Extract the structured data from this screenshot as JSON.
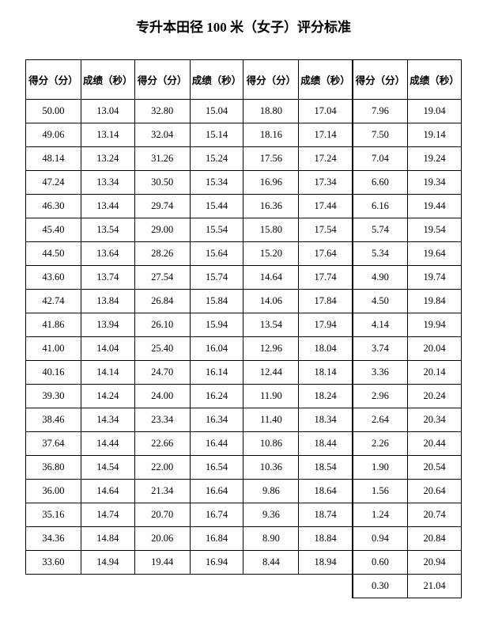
{
  "title": "专升本田径 100 米（女子）评分标准",
  "table": {
    "headers": {
      "score": "得分（分）",
      "time": "成绩（秒）"
    },
    "column_groups": 4,
    "rows": [
      [
        [
          "50.00",
          "13.04"
        ],
        [
          "32.80",
          "15.04"
        ],
        [
          "18.80",
          "17.04"
        ],
        [
          "7.96",
          "19.04"
        ]
      ],
      [
        [
          "49.06",
          "13.14"
        ],
        [
          "32.04",
          "15.14"
        ],
        [
          "18.16",
          "17.14"
        ],
        [
          "7.50",
          "19.14"
        ]
      ],
      [
        [
          "48.14",
          "13.24"
        ],
        [
          "31.26",
          "15.24"
        ],
        [
          "17.56",
          "17.24"
        ],
        [
          "7.04",
          "19.24"
        ]
      ],
      [
        [
          "47.24",
          "13.34"
        ],
        [
          "30.50",
          "15.34"
        ],
        [
          "16.96",
          "17.34"
        ],
        [
          "6.60",
          "19.34"
        ]
      ],
      [
        [
          "46.30",
          "13.44"
        ],
        [
          "29.74",
          "15.44"
        ],
        [
          "16.36",
          "17.44"
        ],
        [
          "6.16",
          "19.44"
        ]
      ],
      [
        [
          "45.40",
          "13.54"
        ],
        [
          "29.00",
          "15.54"
        ],
        [
          "15.80",
          "17.54"
        ],
        [
          "5.74",
          "19.54"
        ]
      ],
      [
        [
          "44.50",
          "13.64"
        ],
        [
          "28.26",
          "15.64"
        ],
        [
          "15.20",
          "17.64"
        ],
        [
          "5.34",
          "19.64"
        ]
      ],
      [
        [
          "43.60",
          "13.74"
        ],
        [
          "27.54",
          "15.74"
        ],
        [
          "14.64",
          "17.74"
        ],
        [
          "4.90",
          "19.74"
        ]
      ],
      [
        [
          "42.74",
          "13.84"
        ],
        [
          "26.84",
          "15.84"
        ],
        [
          "14.06",
          "17.84"
        ],
        [
          "4.50",
          "19.84"
        ]
      ],
      [
        [
          "41.86",
          "13.94"
        ],
        [
          "26.10",
          "15.94"
        ],
        [
          "13.54",
          "17.94"
        ],
        [
          "4.14",
          "19.94"
        ]
      ],
      [
        [
          "41.00",
          "14.04"
        ],
        [
          "25.40",
          "16.04"
        ],
        [
          "12.96",
          "18.04"
        ],
        [
          "3.74",
          "20.04"
        ]
      ],
      [
        [
          "40.16",
          "14.14"
        ],
        [
          "24.70",
          "16.14"
        ],
        [
          "12.44",
          "18.14"
        ],
        [
          "3.36",
          "20.14"
        ]
      ],
      [
        [
          "39.30",
          "14.24"
        ],
        [
          "24.00",
          "16.24"
        ],
        [
          "11.90",
          "18.24"
        ],
        [
          "2.96",
          "20.24"
        ]
      ],
      [
        [
          "38.46",
          "14.34"
        ],
        [
          "23.34",
          "16.34"
        ],
        [
          "11.40",
          "18.34"
        ],
        [
          "2.64",
          "20.34"
        ]
      ],
      [
        [
          "37.64",
          "14.44"
        ],
        [
          "22.66",
          "16.44"
        ],
        [
          "10.86",
          "18.44"
        ],
        [
          "2.26",
          "20.44"
        ]
      ],
      [
        [
          "36.80",
          "14.54"
        ],
        [
          "22.00",
          "16.54"
        ],
        [
          "10.36",
          "18.54"
        ],
        [
          "1.90",
          "20.54"
        ]
      ],
      [
        [
          "36.00",
          "14.64"
        ],
        [
          "21.34",
          "16.64"
        ],
        [
          "9.86",
          "18.64"
        ],
        [
          "1.56",
          "20.64"
        ]
      ],
      [
        [
          "35.16",
          "14.74"
        ],
        [
          "20.70",
          "16.74"
        ],
        [
          "9.36",
          "18.74"
        ],
        [
          "1.24",
          "20.74"
        ]
      ],
      [
        [
          "34.36",
          "14.84"
        ],
        [
          "20.06",
          "16.84"
        ],
        [
          "8.90",
          "18.84"
        ],
        [
          "0.94",
          "20.84"
        ]
      ],
      [
        [
          "33.60",
          "14.94"
        ],
        [
          "19.44",
          "16.94"
        ],
        [
          "8.44",
          "18.94"
        ],
        [
          "0.60",
          "20.94"
        ]
      ],
      [
        [
          "",
          ""
        ],
        [
          "",
          ""
        ],
        [
          "",
          ""
        ],
        [
          "0.30",
          "21.04"
        ]
      ]
    ]
  }
}
